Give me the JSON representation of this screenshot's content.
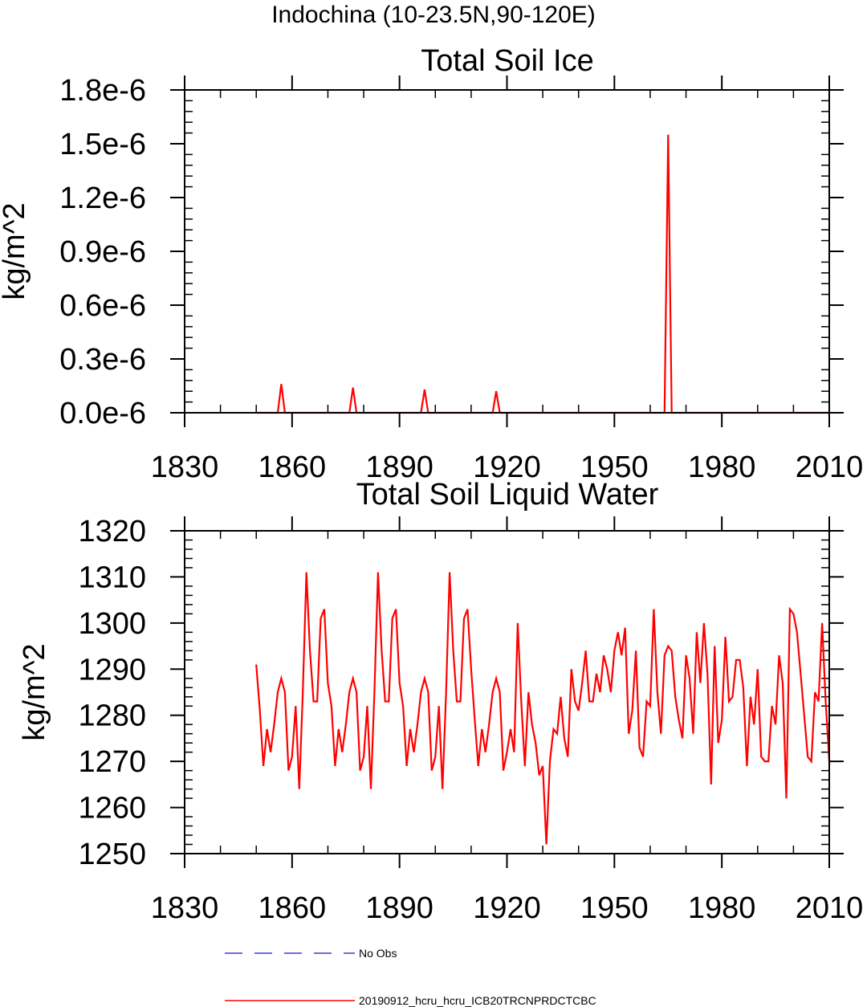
{
  "figure": {
    "main_title": "Indochina (10-23.5N,90-120E)"
  },
  "legend": {
    "items": [
      {
        "label": "No Obs",
        "color": "#3a3adf",
        "style": "dashed"
      },
      {
        "label": "20190912_hcru_hcru_ICB20TRCNPRDCTCBC",
        "color": "#ff0000",
        "style": "solid"
      }
    ]
  },
  "chart_data": [
    {
      "type": "line",
      "title": "Total Soil Ice",
      "ylabel": "kg/m^2",
      "xlabel": "",
      "xlim": [
        1830,
        2010
      ],
      "ylim": [
        0,
        1.8e-06
      ],
      "xticks": [
        1830,
        1860,
        1890,
        1920,
        1950,
        1980,
        2010
      ],
      "xtick_labels": [
        "1830",
        "1860",
        "1890",
        "1920",
        "1950",
        "1980",
        "2010"
      ],
      "yticks": [
        0,
        3e-07,
        6e-07,
        9e-07,
        1.2e-06,
        1.5e-06,
        1.8e-06
      ],
      "ytick_labels": [
        "0.0e-6",
        "0.3e-6",
        "0.6e-6",
        "0.9e-6",
        "1.2e-6",
        "1.5e-6",
        "1.8e-6"
      ],
      "series": [
        {
          "name": "20190912_hcru_hcru_ICB20TRCNPRDCTCBC",
          "color": "#ff0000",
          "x_start": 1850,
          "x_end": 2010,
          "baseline": 0,
          "spikes": [
            [
              1857,
              1.6e-07
            ],
            [
              1877,
              1.4e-07
            ],
            [
              1897,
              1.3e-07
            ],
            [
              1917,
              1.2e-07
            ],
            [
              1965,
              1.55e-06
            ]
          ]
        }
      ]
    },
    {
      "type": "line",
      "title": "Total Soil Liquid Water",
      "ylabel": "kg/m^2",
      "xlabel": "",
      "xlim": [
        1830,
        2010
      ],
      "ylim": [
        1250,
        1320
      ],
      "xticks": [
        1830,
        1860,
        1890,
        1920,
        1950,
        1980,
        2010
      ],
      "xtick_labels": [
        "1830",
        "1860",
        "1890",
        "1920",
        "1950",
        "1980",
        "2010"
      ],
      "yticks": [
        1250,
        1260,
        1270,
        1280,
        1290,
        1300,
        1310,
        1320
      ],
      "ytick_labels": [
        "1250",
        "1260",
        "1270",
        "1280",
        "1290",
        "1300",
        "1310",
        "1320"
      ],
      "series": [
        {
          "name": "20190912_hcru_hcru_ICB20TRCNPRDCTCBC",
          "color": "#ff0000",
          "x": [
            1850,
            1851,
            1852,
            1853,
            1854,
            1855,
            1856,
            1857,
            1858,
            1859,
            1860,
            1861,
            1862,
            1863,
            1864,
            1865,
            1866,
            1867,
            1868,
            1869,
            1870,
            1871,
            1872,
            1873,
            1874,
            1875,
            1876,
            1877,
            1878,
            1879,
            1880,
            1881,
            1882,
            1883,
            1884,
            1885,
            1886,
            1887,
            1888,
            1889,
            1890,
            1891,
            1892,
            1893,
            1894,
            1895,
            1896,
            1897,
            1898,
            1899,
            1900,
            1901,
            1902,
            1903,
            1904,
            1905,
            1906,
            1907,
            1908,
            1909,
            1910,
            1911,
            1912,
            1913,
            1914,
            1915,
            1916,
            1917,
            1918,
            1919,
            1920,
            1921,
            1922,
            1923,
            1924,
            1925,
            1926,
            1927,
            1928,
            1929,
            1930,
            1931,
            1932,
            1933,
            1934,
            1935,
            1936,
            1937,
            1938,
            1939,
            1940,
            1941,
            1942,
            1943,
            1944,
            1945,
            1946,
            1947,
            1948,
            1949,
            1950,
            1951,
            1952,
            1953,
            1954,
            1955,
            1956,
            1957,
            1958,
            1959,
            1960,
            1961,
            1962,
            1963,
            1964,
            1965,
            1966,
            1967,
            1968,
            1969,
            1970,
            1971,
            1972,
            1973,
            1974,
            1975,
            1976,
            1977,
            1978,
            1979,
            1980,
            1981,
            1982,
            1983,
            1984,
            1985,
            1986,
            1987,
            1988,
            1989,
            1990,
            1991,
            1992,
            1993,
            1994,
            1995,
            1996,
            1997,
            1998,
            1999,
            2000,
            2001,
            2002,
            2003,
            2004,
            2005,
            2006,
            2007,
            2008,
            2009,
            2010
          ],
          "values": [
            1291,
            1281,
            1269,
            1277,
            1272,
            1278,
            1285,
            1288,
            1285,
            1268,
            1271,
            1282,
            1264,
            1285,
            1311,
            1294,
            1283,
            1283,
            1301,
            1303,
            1287,
            1282,
            1269,
            1277,
            1272,
            1278,
            1285,
            1288,
            1285,
            1268,
            1271,
            1282,
            1264,
            1285,
            1311,
            1294,
            1283,
            1283,
            1301,
            1303,
            1287,
            1282,
            1269,
            1277,
            1272,
            1278,
            1285,
            1288,
            1285,
            1268,
            1271,
            1282,
            1264,
            1285,
            1311,
            1294,
            1283,
            1283,
            1301,
            1303,
            1290,
            1279,
            1269,
            1277,
            1272,
            1278,
            1285,
            1288,
            1285,
            1268,
            1272,
            1277,
            1272,
            1300,
            1283,
            1269,
            1285,
            1278,
            1274,
            1267,
            1269,
            1252,
            1270,
            1277,
            1276,
            1284,
            1275,
            1271,
            1290,
            1283,
            1281,
            1287,
            1294,
            1283,
            1283,
            1289,
            1285,
            1293,
            1290,
            1285,
            1294,
            1298,
            1293,
            1299,
            1276,
            1281,
            1294,
            1273,
            1271,
            1283,
            1282,
            1303,
            1285,
            1276,
            1293,
            1295,
            1294,
            1284,
            1279,
            1275,
            1293,
            1288,
            1276,
            1298,
            1287,
            1300,
            1289,
            1265,
            1295,
            1274,
            1279,
            1297,
            1283,
            1284,
            1292,
            1292,
            1286,
            1269,
            1284,
            1278,
            1290,
            1271,
            1270,
            1270,
            1282,
            1278,
            1293,
            1287,
            1262,
            1303,
            1302,
            1298,
            1289,
            1280,
            1271,
            1270,
            1285,
            1283,
            1300,
            1283,
            1270
          ]
        }
      ]
    }
  ]
}
